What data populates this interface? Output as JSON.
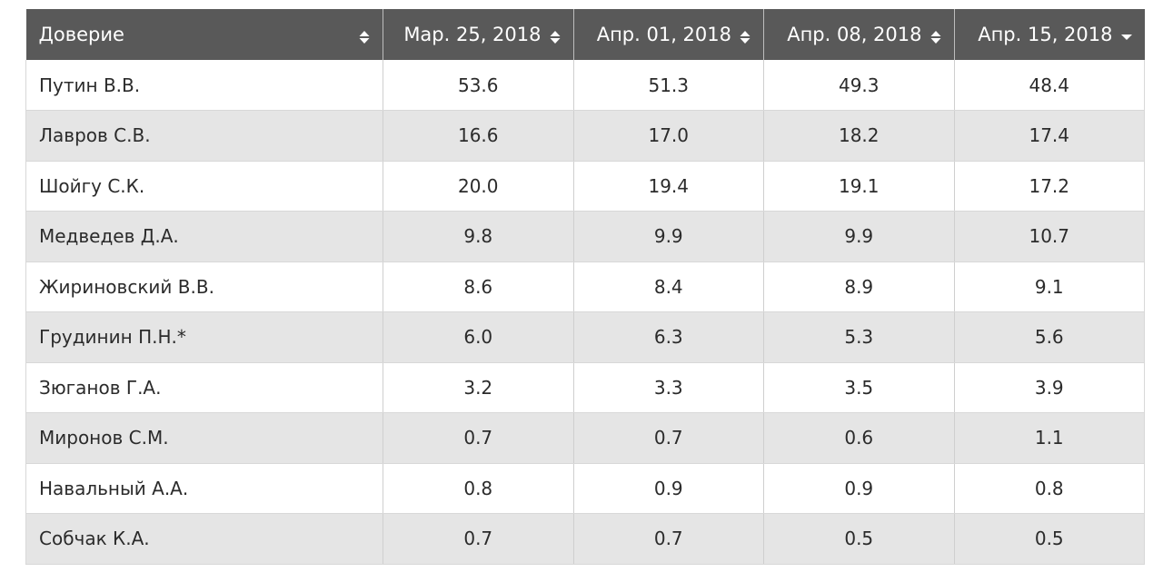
{
  "table": {
    "columns": [
      {
        "label": "Доверие",
        "icon": "sort-both-icon"
      },
      {
        "label": "Мар. 25, 2018",
        "icon": "sort-both-icon"
      },
      {
        "label": "Апр. 01, 2018",
        "icon": "sort-both-icon"
      },
      {
        "label": "Апр. 08, 2018",
        "icon": "sort-both-icon"
      },
      {
        "label": "Апр. 15, 2018",
        "icon": "sort-desc-icon"
      }
    ],
    "rows": [
      {
        "name": "Путин В.В.",
        "values": [
          "53.6",
          "51.3",
          "49.3",
          "48.4"
        ]
      },
      {
        "name": "Лавров С.В.",
        "values": [
          "16.6",
          "17.0",
          "18.2",
          "17.4"
        ]
      },
      {
        "name": "Шойгу С.К.",
        "values": [
          "20.0",
          "19.4",
          "19.1",
          "17.2"
        ]
      },
      {
        "name": "Медведев Д.А.",
        "values": [
          "9.8",
          "9.9",
          "9.9",
          "10.7"
        ]
      },
      {
        "name": "Жириновский В.В.",
        "values": [
          "8.6",
          "8.4",
          "8.9",
          "9.1"
        ]
      },
      {
        "name": "Грудинин П.Н.*",
        "values": [
          "6.0",
          "6.3",
          "5.3",
          "5.6"
        ]
      },
      {
        "name": "Зюганов Г.А.",
        "values": [
          "3.2",
          "3.3",
          "3.5",
          "3.9"
        ]
      },
      {
        "name": "Миронов С.М.",
        "values": [
          "0.7",
          "0.7",
          "0.6",
          "1.1"
        ]
      },
      {
        "name": "Навальный А.А.",
        "values": [
          "0.8",
          "0.9",
          "0.9",
          "0.8"
        ]
      },
      {
        "name": "Собчак К.А.",
        "values": [
          "0.7",
          "0.7",
          "0.5",
          "0.5"
        ]
      }
    ]
  },
  "colors": {
    "header_bg": "#595959",
    "header_text": "#ffffff",
    "row_alt_bg": "#e5e5e5",
    "row_bg": "#ffffff"
  }
}
